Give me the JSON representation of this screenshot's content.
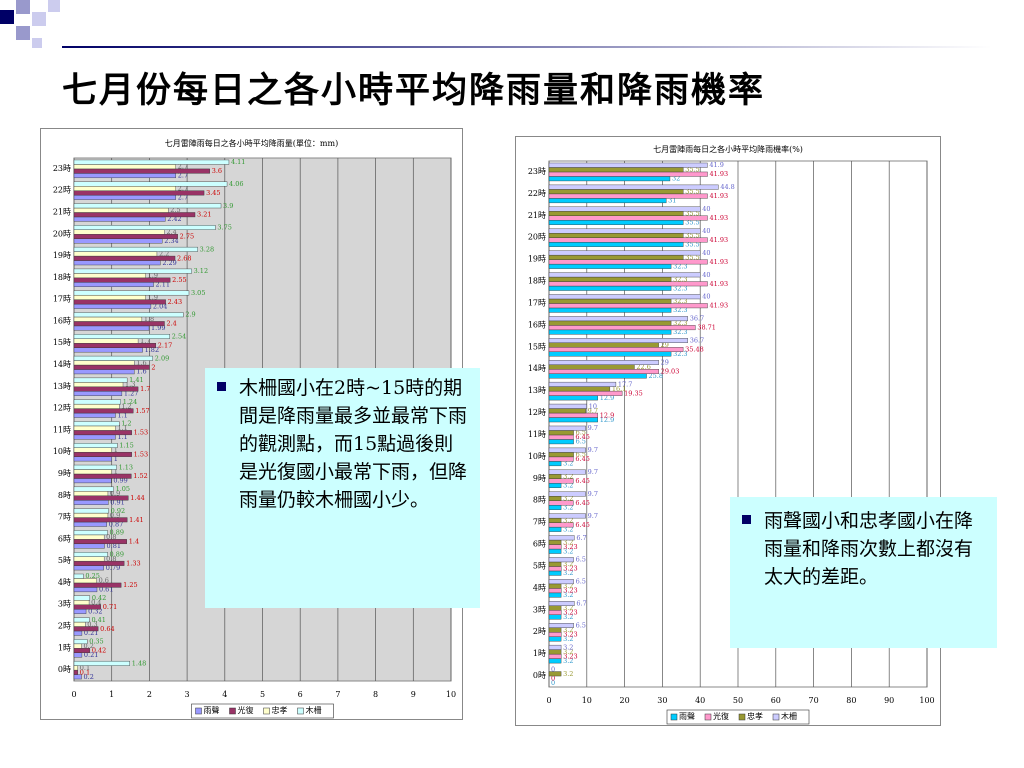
{
  "slide": {
    "title": "七月份每日之各小時平均降雨量和降雨機率",
    "notes": [
      "木柵國小在2時~15時的期間是降雨量最多並最常下雨的觀測點，而15點過後則是光復國小最常下雨，但降雨量仍較木柵國小少。",
      "雨聲國小和忠孝國小在降雨量和降雨次數上都沒有太大的差距。"
    ]
  },
  "chart_data": [
    {
      "type": "hbar",
      "title": "七月雷陣雨每日之各小時平均降雨量(單位：mm)",
      "categories": [
        "0時",
        "1時",
        "2時",
        "3時",
        "4時",
        "5時",
        "6時",
        "7時",
        "8時",
        "9時",
        "10時",
        "11時",
        "12時",
        "13時",
        "14時",
        "15時",
        "16時",
        "17時",
        "18時",
        "19時",
        "20時",
        "21時",
        "22時",
        "23時"
      ],
      "xlim": [
        0,
        10
      ],
      "xticks": [
        0,
        1,
        2,
        3,
        4,
        5,
        6,
        7,
        8,
        9,
        10
      ],
      "grid": true,
      "plot_color": "#d6d6d6",
      "legend": "bottom",
      "series": [
        {
          "name": "雨聲",
          "color": "#9999ff",
          "label_color": "#333399",
          "values": [
            0.2,
            0.21,
            0.21,
            0.32,
            0.61,
            0.79,
            0.81,
            0.87,
            0.91,
            0.99,
            1.0,
            1.1,
            1.1,
            1.27,
            1.6,
            1.82,
            1.99,
            2.04,
            2.11,
            2.29,
            2.34,
            2.42,
            2.7,
            2.7
          ]
        },
        {
          "name": "光復",
          "color": "#993366",
          "label_color": "#cc0000",
          "values": [
            0.1,
            0.42,
            0.64,
            0.71,
            1.25,
            1.33,
            1.4,
            1.41,
            1.44,
            1.52,
            1.53,
            1.53,
            1.57,
            1.7,
            2,
            2.17,
            2.4,
            2.43,
            2.55,
            2.68,
            2.75,
            3.21,
            3.45,
            3.6
          ]
        },
        {
          "name": "忠孝",
          "color": "#ffffcc",
          "label_color": "#666666",
          "values": [
            0.1,
            0.2,
            0.3,
            0.4,
            0.6,
            0.8,
            0.8,
            0.9,
            0.9,
            1.0,
            1.0,
            1.1,
            1.2,
            1.3,
            1.6,
            1.7,
            1.8,
            1.9,
            1.9,
            2.2,
            2.4,
            2.5,
            2.7,
            2.7
          ]
        },
        {
          "name": "木柵",
          "color": "#ccffff",
          "label_color": "#339933",
          "values": [
            1.48,
            0.35,
            0.41,
            0.42,
            0.25,
            0.89,
            0.89,
            0.92,
            1.05,
            1.13,
            1.15,
            1.2,
            1.24,
            1.41,
            2.09,
            2.54,
            2.9,
            3.05,
            3.12,
            3.28,
            3.75,
            3.9,
            4.06,
            4.11
          ]
        }
      ]
    },
    {
      "type": "hbar",
      "title": "七月雷陣雨每日之各小時平均降雨機率(%)",
      "categories": [
        "0時",
        "1時",
        "2時",
        "3時",
        "4時",
        "5時",
        "6時",
        "7時",
        "8時",
        "9時",
        "10時",
        "11時",
        "12時",
        "13時",
        "14時",
        "15時",
        "16時",
        "17時",
        "18時",
        "19時",
        "20時",
        "21時",
        "22時",
        "23時"
      ],
      "xlim": [
        0,
        100
      ],
      "xticks": [
        0,
        10,
        20,
        30,
        40,
        50,
        60,
        70,
        80,
        90,
        100
      ],
      "grid": true,
      "plot_color": "#ffffff",
      "legend": "bottom",
      "series": [
        {
          "name": "雨聲",
          "color": "#00ccff",
          "label_color": "#3399cc",
          "values": [
            0,
            3.2,
            3.2,
            3.2,
            3.2,
            3.2,
            3.2,
            3.2,
            3.2,
            3.2,
            3.2,
            6.5,
            12.9,
            12.9,
            25.8,
            32.3,
            32.3,
            32.3,
            32.3,
            32.3,
            35.5,
            35.5,
            31,
            32
          ]
        },
        {
          "name": "光復",
          "color": "#ff99cc",
          "label_color": "#cc0033",
          "values": [
            0,
            3.23,
            3.23,
            3.23,
            3.23,
            3.23,
            3.23,
            6.45,
            6.45,
            6.45,
            6.45,
            6.45,
            12.9,
            19.35,
            29.03,
            35.48,
            38.71,
            41.93,
            41.93,
            41.93,
            41.93,
            41.93,
            41.93,
            41.93
          ]
        },
        {
          "name": "忠孝",
          "color": "#999933",
          "label_color": "#999933",
          "values": [
            3.2,
            3.2,
            3.2,
            3.2,
            3.2,
            3.2,
            3.2,
            3.2,
            3.2,
            3.2,
            6.5,
            6.5,
            9.7,
            16.1,
            22.6,
            29,
            32.3,
            32.3,
            32.3,
            35.5,
            35.5,
            35.5,
            35.5,
            35.5
          ]
        },
        {
          "name": "木柵",
          "color": "#ccccff",
          "label_color": "#6666cc",
          "values": [
            0,
            3.2,
            6.5,
            6.7,
            6.5,
            6.5,
            6.7,
            9.7,
            9.7,
            9.7,
            9.7,
            9.7,
            10,
            17.7,
            29,
            36.7,
            36.7,
            40,
            40,
            40,
            40,
            40,
            44.8,
            41.9
          ]
        }
      ]
    }
  ]
}
